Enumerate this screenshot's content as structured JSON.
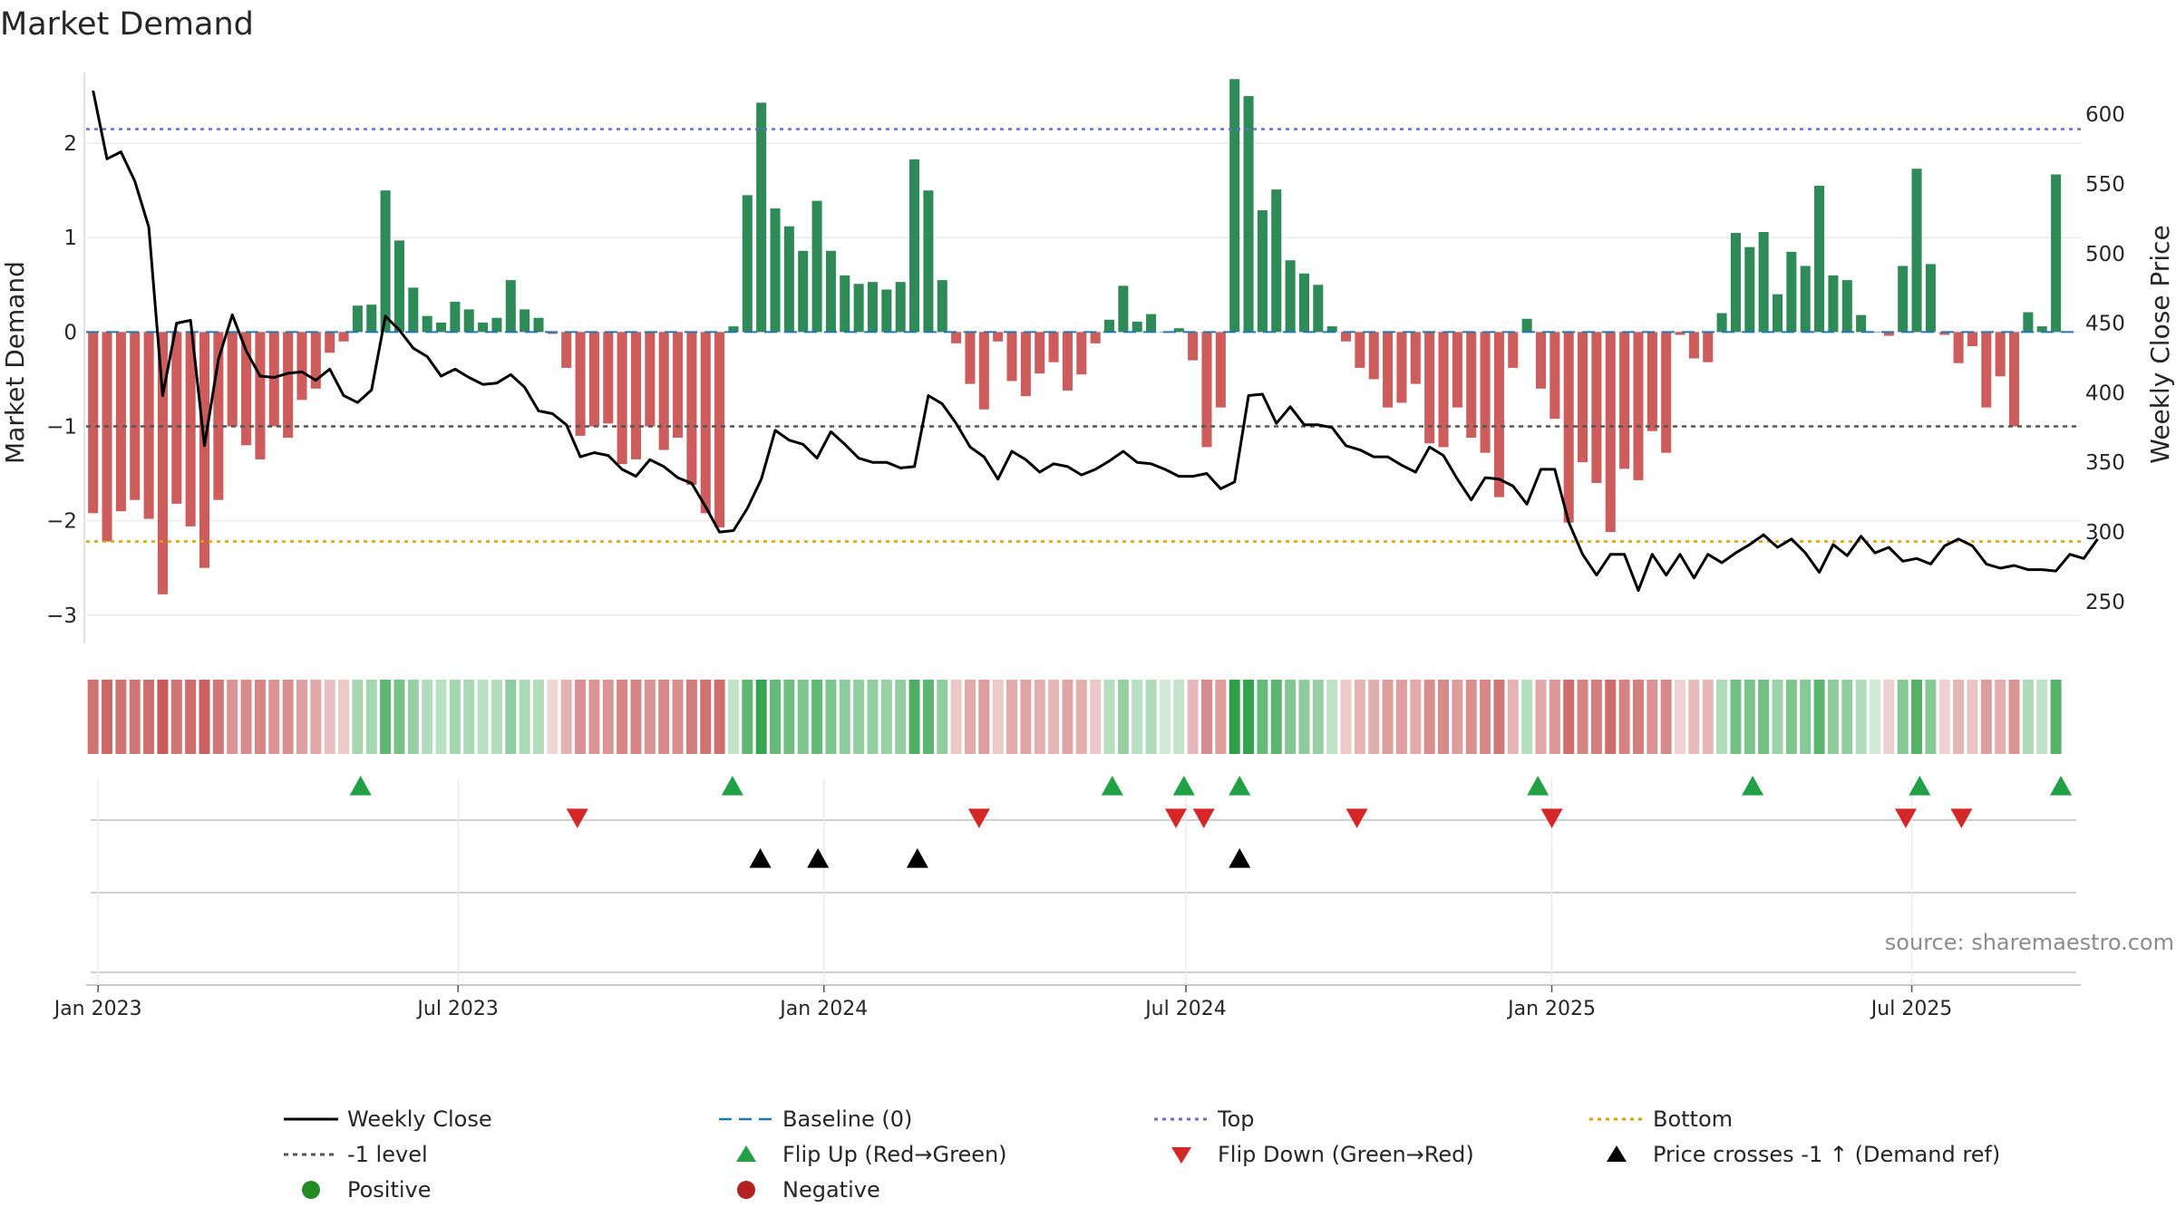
{
  "chart_data": {
    "type": "bar",
    "title": "Market Demand",
    "ylabel_left": "Market Demand",
    "ylabel_right": "Weekly Close Price",
    "source": "source: sharemaestro.com",
    "x_start": "2022-12-26",
    "x_end": "2025-09-24",
    "bars_start": "2022-12-26",
    "weeks": 144,
    "ylim_left": [
      -3.3,
      2.75
    ],
    "ylim_right": [
      220,
      630
    ],
    "yticks_left": [
      2,
      1,
      0,
      -1,
      -2,
      -3
    ],
    "ytick_labels_left": [
      "2",
      "1",
      "0",
      "−1",
      "−2",
      "−3"
    ],
    "yticks_right": [
      600,
      550,
      500,
      450,
      400,
      350,
      300,
      250
    ],
    "x_ticks": [
      {
        "date": "2023-01-01",
        "label": "Jan 2023"
      },
      {
        "date": "2023-07-01",
        "label": "Jul 2023"
      },
      {
        "date": "2024-01-01",
        "label": "Jan 2024"
      },
      {
        "date": "2024-07-01",
        "label": "Jul 2024"
      },
      {
        "date": "2025-01-01",
        "label": "Jan 2025"
      },
      {
        "date": "2025-07-01",
        "label": "Jul 2025"
      }
    ],
    "levels": {
      "top": 2.15,
      "bottom": -2.22,
      "minus_one": -1,
      "baseline": 0
    },
    "colors": {
      "positive_bar": "#2e8b57",
      "negative_bar": "#cd5c5c",
      "close_line": "#000000",
      "baseline": "#1f77b4",
      "top": "#6a6ad0",
      "bottom": "#e0a000",
      "minus_one": "#555555",
      "flip_up": "#22a045",
      "flip_down": "#d62728",
      "cross": "#000000",
      "positive_dot": "#228b22",
      "negative_dot": "#b22222"
    },
    "demand": [
      -1.92,
      -2.22,
      -1.9,
      -1.78,
      -1.98,
      -2.78,
      -1.82,
      -2.06,
      -2.5,
      -1.78,
      -1.0,
      -1.2,
      -1.35,
      -1.0,
      -1.12,
      -0.72,
      -0.6,
      -0.22,
      -0.1,
      0.28,
      0.29,
      1.5,
      0.97,
      0.47,
      0.17,
      0.1,
      0.32,
      0.24,
      0.1,
      0.15,
      0.55,
      0.24,
      0.15,
      -0.02,
      -0.38,
      -1.1,
      -1.0,
      -0.97,
      -1.4,
      -1.35,
      -1.0,
      -1.25,
      -1.12,
      -1.62,
      -1.92,
      -2.07,
      0.06,
      1.45,
      2.43,
      1.31,
      1.12,
      0.86,
      1.39,
      0.86,
      0.6,
      0.51,
      0.53,
      0.45,
      0.53,
      1.83,
      1.5,
      0.55,
      -0.12,
      -0.55,
      -0.82,
      -0.1,
      -0.52,
      -0.68,
      -0.44,
      -0.32,
      -0.62,
      -0.45,
      -0.12,
      0.13,
      0.49,
      0.11,
      0.19,
      0.0,
      0.04,
      -0.3,
      -1.22,
      -0.8,
      2.68,
      2.5,
      1.29,
      1.51,
      0.76,
      0.62,
      0.5,
      0.06,
      -0.1,
      -0.38,
      -0.5,
      -0.8,
      -0.75,
      -0.55,
      -1.18,
      -1.22,
      -0.8,
      -1.12,
      -1.28,
      -1.75,
      -0.38,
      0.14,
      -0.6,
      -0.92,
      -2.02,
      -1.38,
      -1.6,
      -2.12,
      -1.45,
      -1.57,
      -1.05,
      -1.28,
      -0.03,
      -0.28,
      -0.32,
      0.2,
      1.05,
      0.9,
      1.06,
      0.4,
      0.85,
      0.7,
      1.55,
      0.6,
      0.55,
      0.18,
      0.0,
      -0.04,
      0.7,
      1.73,
      0.72,
      -0.03,
      -0.33,
      -0.15,
      -0.8,
      -0.47,
      -1.0,
      0.21,
      0.06,
      1.67
    ],
    "close": [
      617,
      568,
      573,
      552,
      519,
      398,
      450,
      452,
      362,
      424,
      456,
      430,
      412,
      411,
      414,
      415,
      409,
      417,
      398,
      393,
      402,
      455,
      445,
      432,
      426,
      412,
      417,
      411,
      406,
      407,
      413,
      404,
      387,
      385,
      377,
      354,
      357,
      355,
      345,
      340,
      352,
      347,
      339,
      335,
      318,
      300,
      301,
      317,
      338,
      373,
      366,
      363,
      353,
      372,
      363,
      353,
      350,
      350,
      346,
      347,
      398,
      392,
      378,
      361,
      354,
      338,
      358,
      352,
      343,
      349,
      347,
      341,
      345,
      351,
      358,
      350,
      349,
      345,
      340,
      340,
      342,
      331,
      336,
      398,
      399,
      378,
      390,
      377,
      377,
      375,
      362,
      359,
      354,
      354,
      348,
      343,
      361,
      355,
      338,
      323,
      339,
      338,
      333,
      320,
      345,
      345,
      307,
      284,
      269,
      284,
      284,
      258,
      284,
      269,
      284,
      267,
      284,
      278,
      285,
      291,
      298,
      289,
      295,
      285,
      271,
      291,
      283,
      297,
      285,
      289,
      279,
      281,
      277,
      290,
      295,
      290,
      277,
      274,
      276,
      273,
      273,
      272,
      284,
      281,
      295
    ],
    "flips_up": [
      "2023-05-13",
      "2023-11-16",
      "2024-05-25",
      "2024-06-30",
      "2024-07-28",
      "2024-12-25",
      "2025-04-12",
      "2025-07-05",
      "2025-09-14"
    ],
    "flips_down": [
      "2023-08-30",
      "2024-03-19",
      "2024-06-26",
      "2024-07-10",
      "2024-09-25",
      "2025-01-01",
      "2025-06-28",
      "2025-07-26"
    ],
    "price_crosses": [
      "2023-11-30",
      "2023-12-29",
      "2024-02-17",
      "2024-07-28"
    ],
    "legend": [
      {
        "key": "close",
        "label": "Weekly Close"
      },
      {
        "key": "baseline",
        "label": "Baseline (0)"
      },
      {
        "key": "top",
        "label": "Top"
      },
      {
        "key": "bottom",
        "label": "Bottom"
      },
      {
        "key": "minus_one",
        "label": "-1 level"
      },
      {
        "key": "flip_up",
        "label": "Flip Up (Red→Green)"
      },
      {
        "key": "flip_down",
        "label": "Flip Down (Green→Red)"
      },
      {
        "key": "cross",
        "label": "Price crosses -1 ↑ (Demand ref)"
      },
      {
        "key": "positive_dot",
        "label": "Positive"
      },
      {
        "key": "negative_dot",
        "label": "Negative"
      }
    ]
  }
}
